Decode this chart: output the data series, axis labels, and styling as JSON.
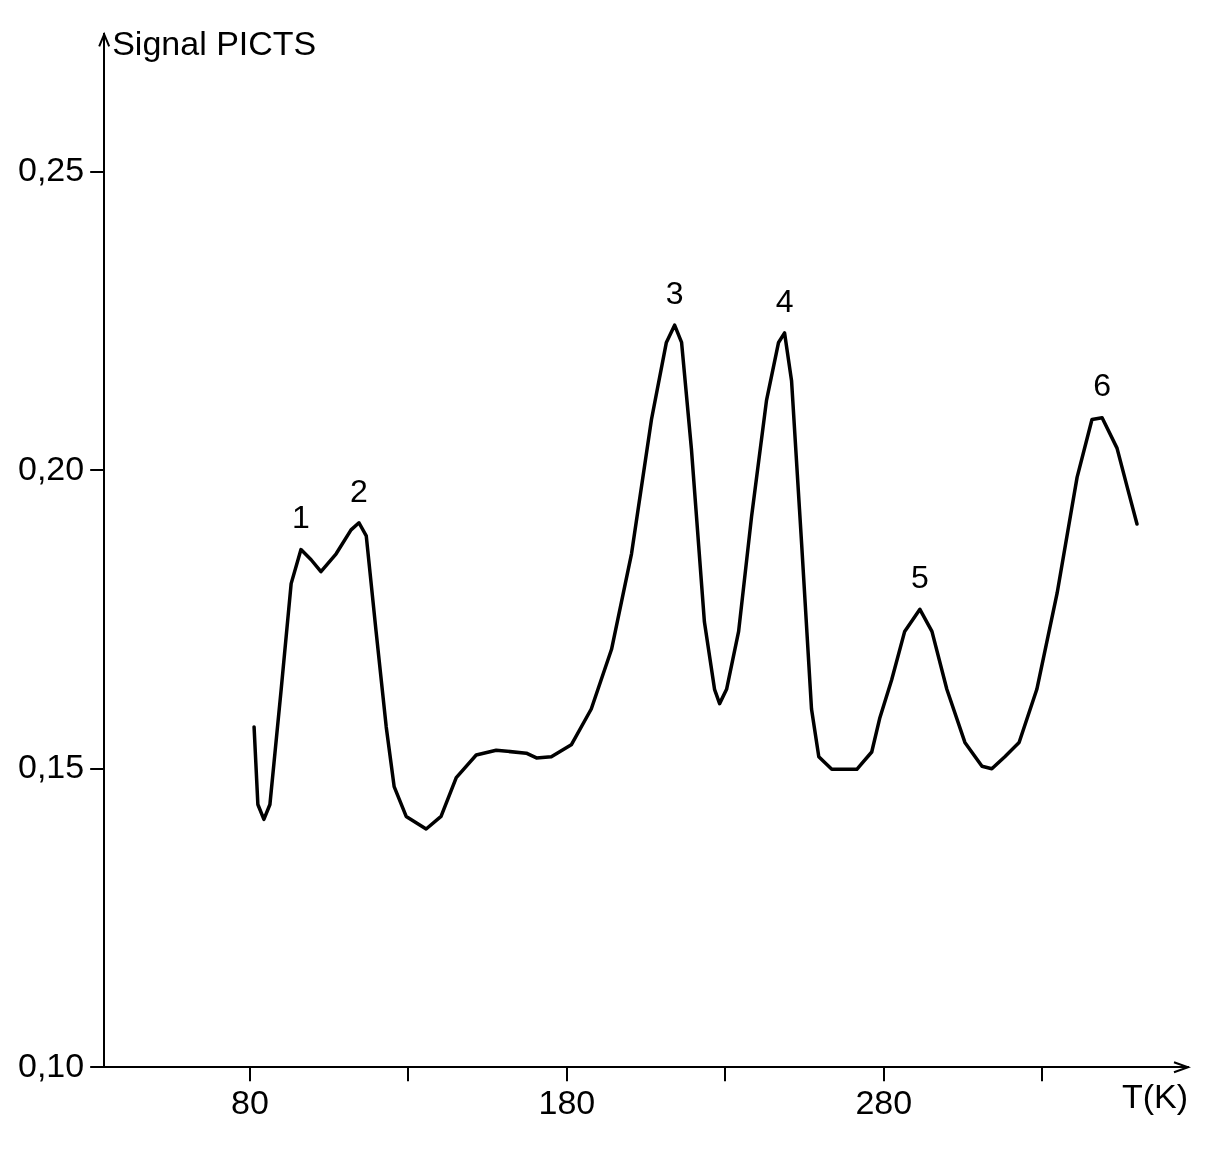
{
  "chart_data": {
    "type": "line",
    "xlabel": "T(K)",
    "ylabel": "Signal PICTS",
    "x": [
      81.3,
      82.5,
      84.4,
      86.3,
      89.8,
      93,
      96.1,
      99.3,
      102.4,
      107.2,
      111.9,
      114.4,
      116.7,
      119.8,
      123,
      125.5,
      129.3,
      135.6,
      140.3,
      145.1,
      151.4,
      157.7,
      167.2,
      170.4,
      175.1,
      181.4,
      187.7,
      194.1,
      200.4,
      206.7,
      211.4,
      214,
      216.2,
      219.3,
      223.4,
      226.6,
      228.2,
      230.4,
      234.2,
      238.3,
      243,
      246.8,
      248.7,
      250.9,
      254.1,
      257.2,
      259.5,
      263.6,
      271.5,
      276.2,
      278.7,
      282.5,
      286.6,
      291.4,
      295.2,
      299.9,
      305.6,
      311,
      314.1,
      318.2,
      322.7,
      328.3,
      334.7,
      341,
      345.7,
      348.9,
      353.6,
      356.8,
      359.9
    ],
    "series": [
      {
        "color": "#000000",
        "values": [
          0.157,
          0.144,
          0.1415,
          0.144,
          0.163,
          0.181,
          0.1867,
          0.185,
          0.183,
          0.186,
          0.19,
          0.1912,
          0.189,
          0.173,
          0.157,
          0.147,
          0.142,
          0.1399,
          0.142,
          0.1485,
          0.1523,
          0.1531,
          0.1526,
          0.1518,
          0.152,
          0.154,
          0.16,
          0.17,
          0.186,
          0.2085,
          0.2214,
          0.2243,
          0.2214,
          0.2036,
          0.1746,
          0.1633,
          0.1609,
          0.1633,
          0.173,
          0.1923,
          0.2117,
          0.2214,
          0.223,
          0.215,
          0.1875,
          0.16,
          0.152,
          0.1499,
          0.1499,
          0.1528,
          0.1584,
          0.1649,
          0.173,
          0.1767,
          0.173,
          0.1633,
          0.1544,
          0.1504,
          0.15,
          0.152,
          0.1544,
          0.1633,
          0.1794,
          0.1988,
          0.2085,
          0.2088,
          0.2037,
          0.1972,
          0.191
        ]
      }
    ],
    "xlim": [
      34,
      376
    ],
    "ylim": [
      0.1,
      0.273
    ],
    "xticks": [
      80,
      {
        "value": 130,
        "label": null
      },
      180,
      {
        "value": 230,
        "label": null
      },
      280,
      {
        "value": 330,
        "label": null
      }
    ],
    "yticks": [
      {
        "value": 0.1,
        "label": "0,10"
      },
      {
        "value": 0.15,
        "label": "0,15"
      },
      {
        "value": 0.2,
        "label": "0,20"
      },
      {
        "value": 0.25,
        "label": "0,25"
      }
    ],
    "annotations": [
      {
        "text": "1",
        "x": 96.1,
        "y": 0.1867
      },
      {
        "text": "2",
        "x": 114.4,
        "y": 0.1912
      },
      {
        "text": "3",
        "x": 214,
        "y": 0.2243
      },
      {
        "text": "4",
        "x": 248.7,
        "y": 0.223
      },
      {
        "text": "5",
        "x": 291.4,
        "y": 0.1767
      },
      {
        "text": "6",
        "x": 348.9,
        "y": 0.2088
      }
    ],
    "grid": false,
    "legend": false,
    "marker": "none",
    "line_style": "solid"
  }
}
